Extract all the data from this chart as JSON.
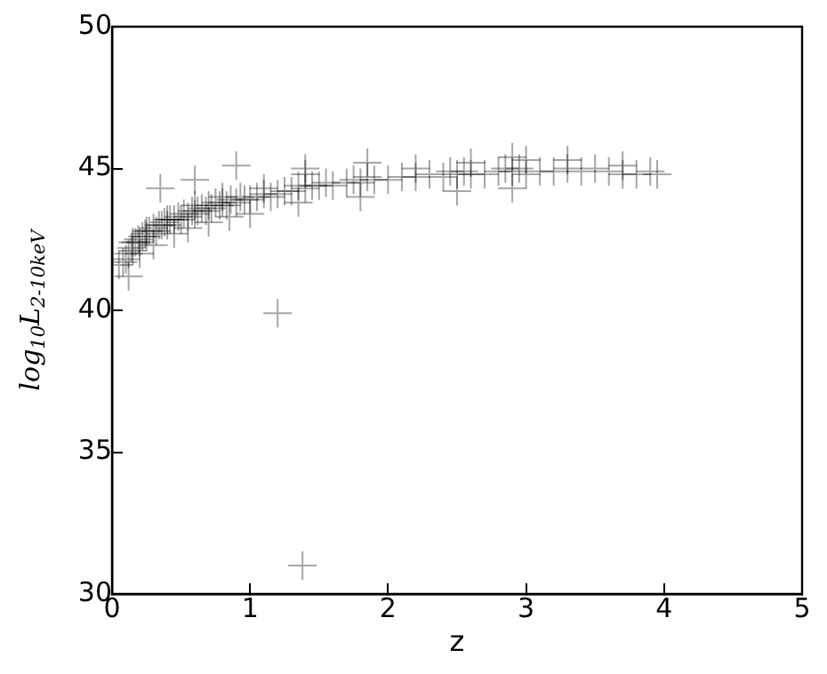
{
  "chart_data": {
    "type": "scatter",
    "xlabel": "z",
    "ylabel": "log$_{10}$L$_{2-10keV}$",
    "xlim": [
      0,
      5
    ],
    "ylim": [
      30,
      50
    ],
    "xticks": [
      0,
      1,
      2,
      3,
      4,
      5
    ],
    "yticks": [
      30,
      35,
      40,
      45,
      50
    ],
    "grid": false,
    "marker": "cross",
    "legend": false,
    "series": [
      {
        "color": "#000000",
        "x": [
          0.05,
          0.08,
          0.1,
          0.12,
          0.14,
          0.15,
          0.17,
          0.19,
          0.2,
          0.22,
          0.24,
          0.25,
          0.27,
          0.3,
          0.32,
          0.34,
          0.36,
          0.38,
          0.4,
          0.42,
          0.45,
          0.48,
          0.5,
          0.52,
          0.55,
          0.58,
          0.6,
          0.62,
          0.65,
          0.68,
          0.7,
          0.72,
          0.75,
          0.78,
          0.8,
          0.83,
          0.86,
          0.9,
          0.93,
          0.96,
          1.0,
          1.05,
          1.1,
          1.15,
          1.2,
          1.25,
          1.3,
          1.35,
          1.4,
          1.45,
          1.5,
          1.55,
          1.6,
          1.7,
          1.75,
          1.8,
          1.85,
          1.9,
          2.0,
          2.1,
          2.2,
          2.3,
          2.4,
          2.45,
          2.5,
          2.55,
          2.6,
          2.7,
          2.8,
          2.85,
          2.9,
          2.95,
          3.0,
          3.1,
          3.2,
          3.3,
          3.4,
          3.5,
          3.6,
          3.7,
          3.8,
          3.9,
          3.95,
          0.12,
          0.2,
          0.3,
          0.45,
          0.55,
          0.7,
          0.85,
          1.0,
          1.35,
          1.4,
          1.8,
          2.5,
          2.9,
          3.0,
          0.35,
          0.6,
          0.9,
          1.2,
          1.38,
          0.15,
          0.25,
          0.4,
          0.6,
          0.8,
          1.1,
          1.4,
          1.85,
          2.2,
          2.6,
          2.9,
          3.3,
          3.7
        ],
        "values": [
          41.6,
          41.7,
          41.8,
          42.0,
          42.2,
          42.1,
          42.4,
          42.5,
          42.4,
          42.6,
          42.7,
          42.6,
          42.8,
          42.9,
          42.8,
          43.0,
          43.0,
          43.1,
          43.0,
          43.2,
          43.2,
          43.3,
          43.2,
          43.4,
          43.3,
          43.5,
          43.4,
          43.5,
          43.6,
          43.5,
          43.7,
          43.6,
          43.8,
          43.7,
          43.8,
          43.7,
          43.9,
          43.8,
          44.0,
          43.9,
          43.9,
          44.0,
          44.1,
          44.0,
          44.1,
          44.2,
          44.2,
          44.4,
          44.3,
          44.4,
          44.4,
          44.5,
          44.4,
          44.5,
          44.6,
          44.5,
          44.7,
          44.6,
          44.6,
          44.7,
          44.7,
          44.8,
          44.7,
          44.9,
          44.8,
          44.9,
          44.8,
          44.8,
          44.9,
          45.0,
          44.9,
          45.0,
          44.8,
          44.9,
          44.9,
          45.0,
          44.9,
          45.0,
          44.9,
          44.8,
          44.8,
          44.9,
          44.8,
          41.2,
          42.0,
          42.3,
          42.7,
          42.9,
          43.1,
          43.3,
          43.4,
          43.8,
          45.0,
          44.0,
          44.2,
          44.3,
          45.3,
          44.3,
          44.6,
          45.1,
          39.9,
          31.0,
          42.4,
          42.8,
          43.2,
          43.7,
          44.0,
          44.3,
          44.8,
          45.2,
          45.0,
          45.2,
          45.4,
          45.3,
          45.1
        ]
      }
    ]
  }
}
